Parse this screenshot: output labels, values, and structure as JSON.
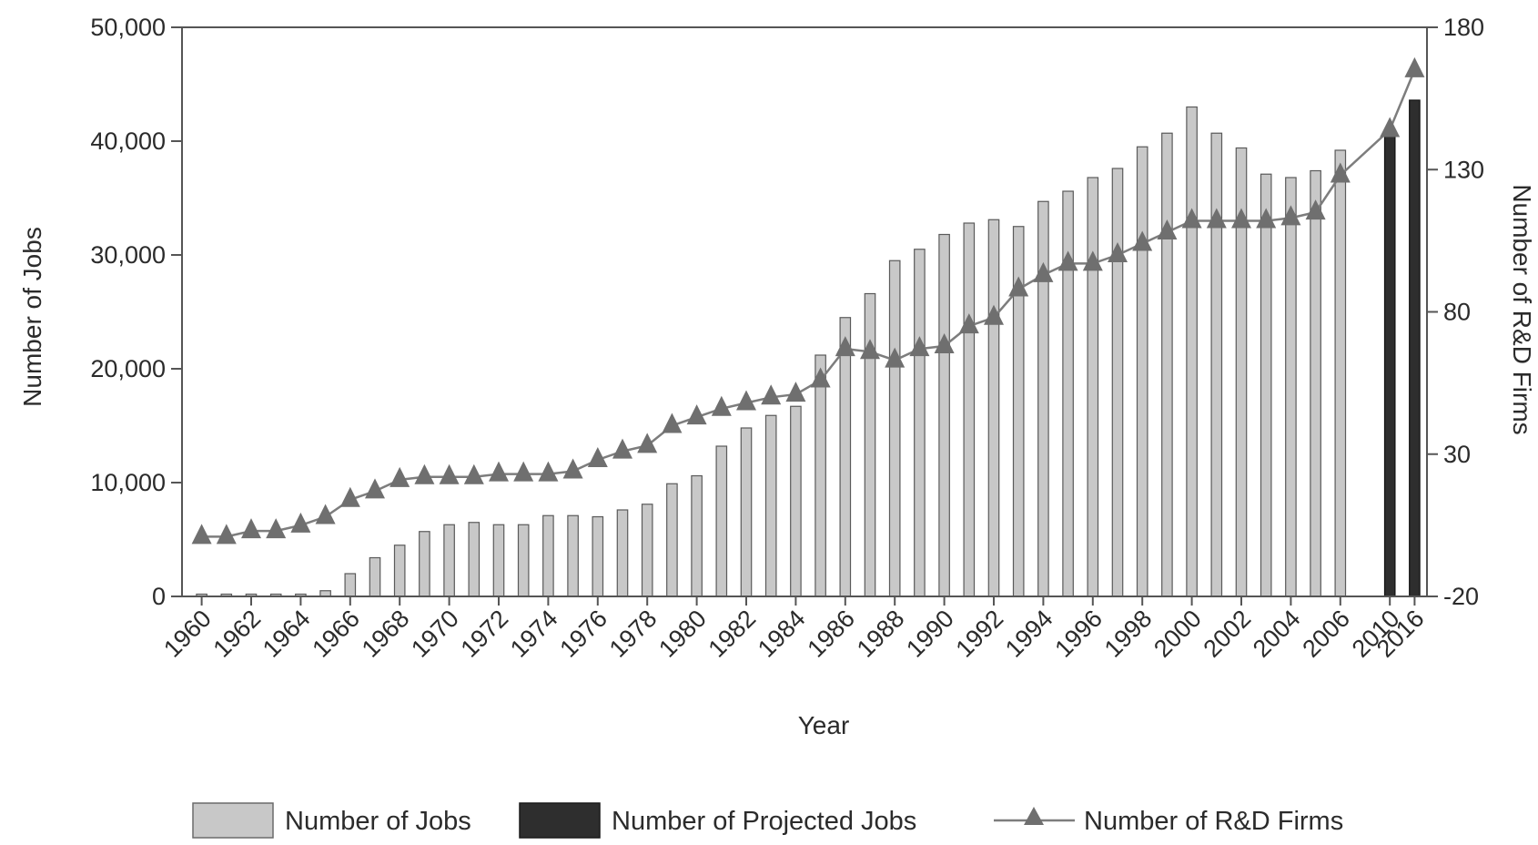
{
  "chart_data": {
    "type": "bar",
    "xlabel": "Year",
    "ylabel": "Number of Jobs",
    "y2label": "Number of R&D Firms",
    "ylim": [
      0,
      50000
    ],
    "y2lim": [
      -20,
      180
    ],
    "y_ticks": [
      "0",
      "10,000",
      "20,000",
      "30,000",
      "40,000",
      "50,000"
    ],
    "y2_ticks": [
      "-20",
      "30",
      "80",
      "130",
      "180"
    ],
    "grid": false,
    "legend_position": "bottom",
    "x_tick_labels": [
      "1960",
      "1962",
      "1964",
      "1966",
      "1968",
      "1970",
      "1972",
      "1974",
      "1976",
      "1978",
      "1980",
      "1982",
      "1984",
      "1986",
      "1988",
      "1990",
      "1992",
      "1994",
      "1996",
      "1998",
      "2000",
      "2002",
      "2004",
      "2006",
      "2010",
      "2016"
    ],
    "categories": [
      "1960",
      "1961",
      "1962",
      "1963",
      "1964",
      "1965",
      "1966",
      "1967",
      "1968",
      "1969",
      "1970",
      "1971",
      "1972",
      "1973",
      "1974",
      "1975",
      "1976",
      "1977",
      "1978",
      "1979",
      "1980",
      "1981",
      "1982",
      "1983",
      "1984",
      "1985",
      "1986",
      "1987",
      "1988",
      "1989",
      "1990",
      "1991",
      "1992",
      "1993",
      "1994",
      "1995",
      "1996",
      "1997",
      "1998",
      "1999",
      "2000",
      "2001",
      "2002",
      "2003",
      "2004",
      "2005",
      "2006",
      "2007",
      "2010",
      "2016"
    ],
    "series": [
      {
        "name": "Number of Jobs",
        "kind": "bar",
        "axis": "left",
        "color": "#c8c8c8",
        "values": [
          200,
          200,
          200,
          200,
          200,
          500,
          2000,
          3400,
          4500,
          5700,
          6300,
          6500,
          6300,
          6300,
          7100,
          7100,
          7000,
          7600,
          8100,
          9900,
          10600,
          13200,
          14800,
          15900,
          16700,
          21200,
          24500,
          26600,
          29500,
          30500,
          31800,
          32800,
          33100,
          32500,
          34700,
          35600,
          36800,
          37600,
          39500,
          40700,
          43000,
          40700,
          39400,
          37100,
          36800,
          37400,
          39200,
          null,
          null,
          null
        ]
      },
      {
        "name": "Number of Projected Jobs",
        "kind": "bar",
        "axis": "left",
        "color": "#2e2e2e",
        "values": [
          null,
          null,
          null,
          null,
          null,
          null,
          null,
          null,
          null,
          null,
          null,
          null,
          null,
          null,
          null,
          null,
          null,
          null,
          null,
          null,
          null,
          null,
          null,
          null,
          null,
          null,
          null,
          null,
          null,
          null,
          null,
          null,
          null,
          null,
          null,
          null,
          null,
          null,
          null,
          null,
          null,
          null,
          null,
          null,
          null,
          null,
          null,
          null,
          40500,
          43600
        ]
      },
      {
        "name": "Number of R&D Firms",
        "kind": "line",
        "axis": "right",
        "color": "#7d7d7d",
        "values": [
          1,
          1,
          3,
          3,
          5,
          8,
          14,
          17,
          21,
          22,
          22,
          22,
          23,
          23,
          23,
          24,
          28,
          31,
          33,
          40,
          43,
          46,
          48,
          50,
          51,
          56,
          67,
          66,
          63,
          67,
          68,
          75,
          78,
          88,
          93,
          97,
          97,
          100,
          104,
          108,
          112,
          112,
          112,
          112,
          113,
          115,
          128,
          null,
          144,
          165
        ]
      }
    ]
  }
}
